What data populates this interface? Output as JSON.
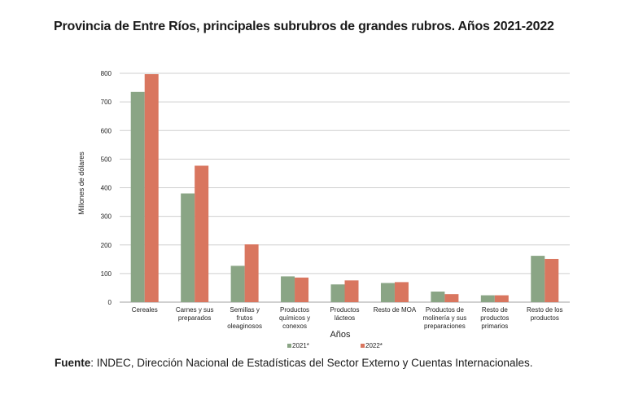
{
  "title": "Provincia de Entre Ríos, principales subrubros de grandes rubros. Años 2021-2022",
  "source": {
    "label": "Fuente",
    "text": ": INDEC, Dirección Nacional de Estadísticas del Sector Externo y Cuentas Internacionales."
  },
  "chart_data": {
    "type": "bar",
    "xlabel": "Años",
    "ylabel": "Millones de dólares",
    "ylim": [
      0,
      800
    ],
    "yticks": [
      0,
      100,
      200,
      300,
      400,
      500,
      600,
      700,
      800
    ],
    "grid": true,
    "legend_position": "bottom",
    "categories": [
      [
        "Cereales"
      ],
      [
        "Carnes y sus",
        "preparados"
      ],
      [
        "Semillas y",
        "frutos",
        "oleaginosos"
      ],
      [
        "Productos",
        "químicos y",
        "conexos"
      ],
      [
        "Productos",
        "lácteos"
      ],
      [
        "Resto de MOA"
      ],
      [
        "Productos de",
        "molinería y sus",
        "preparaciones"
      ],
      [
        "Resto de",
        "productos",
        "primarios"
      ],
      [
        "Resto de los",
        "productos"
      ]
    ],
    "series": [
      {
        "name": "2021*",
        "color": "#8aa585",
        "values": [
          735,
          380,
          127,
          90,
          62,
          67,
          37,
          24,
          162
        ]
      },
      {
        "name": "2022*",
        "color": "#d9765f",
        "values": [
          797,
          477,
          202,
          86,
          76,
          70,
          28,
          24,
          151
        ]
      }
    ]
  }
}
